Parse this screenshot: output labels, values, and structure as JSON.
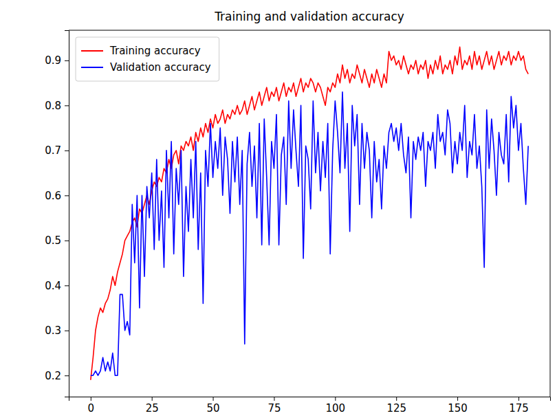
{
  "chart_data": {
    "type": "line",
    "title": "Training and validation accuracy",
    "x": [
      0,
      1,
      2,
      3,
      4,
      5,
      6,
      7,
      8,
      9,
      10,
      11,
      12,
      13,
      14,
      15,
      16,
      17,
      18,
      19,
      20,
      21,
      22,
      23,
      24,
      25,
      26,
      27,
      28,
      29,
      30,
      31,
      32,
      33,
      34,
      35,
      36,
      37,
      38,
      39,
      40,
      41,
      42,
      43,
      44,
      45,
      46,
      47,
      48,
      49,
      50,
      51,
      52,
      53,
      54,
      55,
      56,
      57,
      58,
      59,
      60,
      61,
      62,
      63,
      64,
      65,
      66,
      67,
      68,
      69,
      70,
      71,
      72,
      73,
      74,
      75,
      76,
      77,
      78,
      79,
      80,
      81,
      82,
      83,
      84,
      85,
      86,
      87,
      88,
      89,
      90,
      91,
      92,
      93,
      94,
      95,
      96,
      97,
      98,
      99,
      100,
      101,
      102,
      103,
      104,
      105,
      106,
      107,
      108,
      109,
      110,
      111,
      112,
      113,
      114,
      115,
      116,
      117,
      118,
      119,
      120,
      121,
      122,
      123,
      124,
      125,
      126,
      127,
      128,
      129,
      130,
      131,
      132,
      133,
      134,
      135,
      136,
      137,
      138,
      139,
      140,
      141,
      142,
      143,
      144,
      145,
      146,
      147,
      148,
      149,
      150,
      151,
      152,
      153,
      154,
      155,
      156,
      157,
      158,
      159,
      160,
      161,
      162,
      163,
      164,
      165,
      166,
      167,
      168,
      169,
      170,
      171,
      172,
      173,
      174,
      175,
      176,
      177,
      178,
      179
    ],
    "series": [
      {
        "name": "Training accuracy",
        "color": "#ff0000",
        "values": [
          0.19,
          0.24,
          0.3,
          0.33,
          0.35,
          0.34,
          0.36,
          0.37,
          0.39,
          0.42,
          0.4,
          0.43,
          0.45,
          0.47,
          0.5,
          0.51,
          0.52,
          0.54,
          0.55,
          0.53,
          0.57,
          0.56,
          0.58,
          0.6,
          0.58,
          0.61,
          0.63,
          0.62,
          0.64,
          0.63,
          0.66,
          0.65,
          0.68,
          0.66,
          0.69,
          0.7,
          0.67,
          0.71,
          0.7,
          0.72,
          0.71,
          0.73,
          0.7,
          0.74,
          0.72,
          0.75,
          0.73,
          0.76,
          0.74,
          0.77,
          0.75,
          0.78,
          0.76,
          0.77,
          0.79,
          0.76,
          0.78,
          0.77,
          0.79,
          0.78,
          0.8,
          0.78,
          0.79,
          0.81,
          0.78,
          0.8,
          0.82,
          0.79,
          0.81,
          0.83,
          0.8,
          0.82,
          0.84,
          0.81,
          0.83,
          0.82,
          0.84,
          0.81,
          0.83,
          0.85,
          0.82,
          0.84,
          0.83,
          0.85,
          0.82,
          0.84,
          0.86,
          0.83,
          0.85,
          0.84,
          0.86,
          0.85,
          0.83,
          0.85,
          0.84,
          0.82,
          0.8,
          0.84,
          0.83,
          0.85,
          0.84,
          0.87,
          0.85,
          0.89,
          0.86,
          0.88,
          0.85,
          0.87,
          0.86,
          0.89,
          0.87,
          0.85,
          0.88,
          0.86,
          0.84,
          0.87,
          0.85,
          0.88,
          0.86,
          0.84,
          0.87,
          0.85,
          0.92,
          0.9,
          0.91,
          0.89,
          0.9,
          0.88,
          0.91,
          0.89,
          0.87,
          0.89,
          0.88,
          0.9,
          0.87,
          0.89,
          0.88,
          0.9,
          0.86,
          0.89,
          0.87,
          0.9,
          0.88,
          0.91,
          0.87,
          0.89,
          0.88,
          0.9,
          0.87,
          0.91,
          0.89,
          0.93,
          0.88,
          0.9,
          0.89,
          0.91,
          0.88,
          0.92,
          0.89,
          0.91,
          0.88,
          0.9,
          0.92,
          0.89,
          0.91,
          0.88,
          0.9,
          0.92,
          0.89,
          0.91,
          0.9,
          0.92,
          0.89,
          0.91,
          0.9,
          0.92,
          0.9,
          0.91,
          0.88,
          0.87
        ]
      },
      {
        "name": "Validation accuracy",
        "color": "#0000ff",
        "values": [
          0.2,
          0.2,
          0.21,
          0.2,
          0.21,
          0.24,
          0.21,
          0.23,
          0.21,
          0.25,
          0.2,
          0.2,
          0.38,
          0.38,
          0.3,
          0.32,
          0.29,
          0.58,
          0.45,
          0.6,
          0.35,
          0.6,
          0.42,
          0.62,
          0.55,
          0.65,
          0.48,
          0.68,
          0.5,
          0.61,
          0.44,
          0.7,
          0.55,
          0.72,
          0.47,
          0.66,
          0.58,
          0.7,
          0.42,
          0.62,
          0.52,
          0.68,
          0.55,
          0.72,
          0.48,
          0.65,
          0.36,
          0.7,
          0.62,
          0.76,
          0.64,
          0.72,
          0.66,
          0.75,
          0.6,
          0.73,
          0.68,
          0.56,
          0.72,
          0.63,
          0.73,
          0.58,
          0.7,
          0.27,
          0.67,
          0.74,
          0.62,
          0.71,
          0.55,
          0.76,
          0.49,
          0.77,
          0.64,
          0.49,
          0.72,
          0.66,
          0.78,
          0.49,
          0.69,
          0.73,
          0.58,
          0.81,
          0.66,
          0.79,
          0.7,
          0.62,
          0.8,
          0.46,
          0.71,
          0.68,
          0.57,
          0.81,
          0.65,
          0.74,
          0.61,
          0.72,
          0.64,
          0.76,
          0.47,
          0.7,
          0.81,
          0.74,
          0.65,
          0.83,
          0.66,
          0.76,
          0.52,
          0.8,
          0.71,
          0.78,
          0.58,
          0.76,
          0.66,
          0.74,
          0.7,
          0.55,
          0.72,
          0.63,
          0.68,
          0.57,
          0.71,
          0.66,
          0.74,
          0.76,
          0.72,
          0.75,
          0.7,
          0.76,
          0.69,
          0.65,
          0.73,
          0.55,
          0.72,
          0.68,
          0.73,
          0.7,
          0.74,
          0.62,
          0.72,
          0.7,
          0.74,
          0.66,
          0.78,
          0.72,
          0.74,
          0.69,
          0.79,
          0.76,
          0.65,
          0.72,
          0.67,
          0.74,
          0.7,
          0.8,
          0.64,
          0.72,
          0.69,
          0.78,
          0.66,
          0.71,
          0.62,
          0.44,
          0.79,
          0.66,
          0.77,
          0.7,
          0.6,
          0.74,
          0.69,
          0.67,
          0.78,
          0.63,
          0.82,
          0.75,
          0.8,
          0.7,
          0.76,
          0.66,
          0.58,
          0.71
        ]
      }
    ],
    "xlim": [
      -8.95,
      187.95
    ],
    "ylim": [
      0.153,
      0.967
    ],
    "xticks": [
      0,
      25,
      50,
      75,
      100,
      125,
      150,
      175
    ],
    "yticks": [
      0.2,
      0.3,
      0.4,
      0.5,
      0.6,
      0.7,
      0.8,
      0.9
    ],
    "grid": false,
    "legend": "upper left"
  }
}
